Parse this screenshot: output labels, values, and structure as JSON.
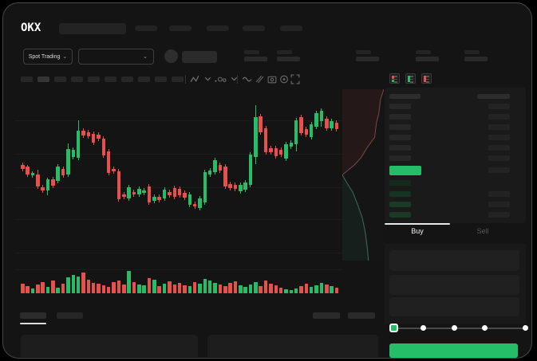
{
  "app": {
    "logo_text": "OKX"
  },
  "colors": {
    "green": "#26bd68",
    "red": "#e8504b",
    "green_dim_rows": [
      "#132b1d",
      "#163424",
      "#183a27",
      "#183a27"
    ],
    "depth_ask_line": "#7a4a46",
    "depth_bid_line": "#3e6b62",
    "depth_ask_fill": "rgba(150,55,50,0.12)",
    "depth_bid_fill": "rgba(35,110,80,0.12)",
    "placeholder": "#242424",
    "placeholder_bright": "#2c2c2c"
  },
  "header": {
    "nav_placeholder_count": 5,
    "market_selector": {
      "label": "Spot Trading",
      "chevron": "⌄"
    },
    "pair_dropdown": {
      "chevron": "⌄"
    },
    "stat_group_count": 5
  },
  "toolbar": {
    "pill_count": 10,
    "active_pill_index": 1,
    "icons": [
      "zigzag-indicator-icon",
      "chevron-down-icon",
      "dot-icon",
      "candle-style-icon",
      "chevron-down-icon",
      "wave-icon",
      "ruler-icon",
      "camera-icon",
      "gear-icon",
      "fullscreen-icon"
    ]
  },
  "chart_data": {
    "type": "candlestick_with_volume_and_depth",
    "title": "",
    "note": "Skeleton trading chart; no axis labels visible. Values in arbitrary price units 0-220 (chart height), higher = higher price.",
    "ylim": [
      0,
      220
    ],
    "grid": true,
    "candles": [
      [
        "r",
        127,
        122,
        130,
        119
      ],
      [
        "r",
        125,
        115,
        127,
        112
      ],
      [
        "g",
        117,
        114,
        119,
        111
      ],
      [
        "r",
        115,
        100,
        121,
        97
      ],
      [
        "r",
        99,
        95,
        102,
        92
      ],
      [
        "g",
        109,
        95,
        111,
        89
      ],
      [
        "r",
        109,
        101,
        112,
        98
      ],
      [
        "g",
        125,
        107,
        128,
        104
      ],
      [
        "r",
        122,
        114,
        125,
        111
      ],
      [
        "g",
        147,
        115,
        154,
        112
      ],
      [
        "g",
        146,
        137,
        149,
        134
      ],
      [
        "g",
        170,
        136,
        183,
        133
      ],
      [
        "r",
        170,
        164,
        173,
        161
      ],
      [
        "r",
        168,
        163,
        171,
        160
      ],
      [
        "r",
        166,
        155,
        169,
        152
      ],
      [
        "r",
        165,
        160,
        168,
        157
      ],
      [
        "r",
        160,
        139,
        163,
        136
      ],
      [
        "r",
        144,
        117,
        147,
        114
      ],
      [
        "r",
        122,
        119,
        125,
        116
      ],
      [
        "r",
        119,
        84,
        122,
        81
      ],
      [
        "r",
        90,
        87,
        93,
        84
      ],
      [
        "g",
        99,
        85,
        102,
        82
      ],
      [
        "r",
        93,
        90,
        96,
        87
      ],
      [
        "g",
        97,
        90,
        100,
        87
      ],
      [
        "g",
        95,
        92,
        98,
        89
      ],
      [
        "r",
        100,
        80,
        103,
        77
      ],
      [
        "g",
        87,
        82,
        90,
        79
      ],
      [
        "r",
        87,
        83,
        90,
        80
      ],
      [
        "g",
        96,
        85,
        99,
        82
      ],
      [
        "r",
        93,
        89,
        96,
        86
      ],
      [
        "r",
        98,
        87,
        101,
        84
      ],
      [
        "r",
        97,
        89,
        100,
        86
      ],
      [
        "r",
        92,
        86,
        95,
        83
      ],
      [
        "g",
        90,
        77,
        93,
        74
      ],
      [
        "r",
        78,
        75,
        81,
        72
      ],
      [
        "g",
        85,
        73,
        88,
        70
      ],
      [
        "g",
        118,
        80,
        121,
        77
      ],
      [
        "g",
        120,
        115,
        123,
        112
      ],
      [
        "g",
        133,
        118,
        136,
        115
      ],
      [
        "r",
        127,
        120,
        130,
        117
      ],
      [
        "r",
        125,
        100,
        128,
        97
      ],
      [
        "r",
        103,
        98,
        106,
        95
      ],
      [
        "r",
        102,
        97,
        105,
        94
      ],
      [
        "g",
        102,
        94,
        105,
        91
      ],
      [
        "g",
        105,
        96,
        108,
        93
      ],
      [
        "g",
        140,
        102,
        143,
        99
      ],
      [
        "g",
        187,
        137,
        202,
        128
      ],
      [
        "r",
        188,
        168,
        191,
        165
      ],
      [
        "r",
        173,
        143,
        176,
        140
      ],
      [
        "r",
        148,
        143,
        151,
        140
      ],
      [
        "r",
        148,
        138,
        151,
        135
      ],
      [
        "r",
        146,
        140,
        149,
        137
      ],
      [
        "g",
        153,
        135,
        156,
        132
      ],
      [
        "g",
        155,
        150,
        158,
        147
      ],
      [
        "g",
        183,
        153,
        186,
        144
      ],
      [
        "r",
        187,
        167,
        190,
        164
      ],
      [
        "r",
        172,
        165,
        175,
        162
      ],
      [
        "g",
        178,
        162,
        181,
        159
      ],
      [
        "g",
        192,
        175,
        195,
        172
      ],
      [
        "g",
        195,
        182,
        198,
        175
      ],
      [
        "r",
        185,
        173,
        188,
        170
      ],
      [
        "g",
        182,
        173,
        185,
        170
      ],
      [
        "r",
        180,
        172,
        183,
        169
      ]
    ],
    "volume": [
      12,
      9,
      6,
      11,
      14,
      8,
      16,
      7,
      12,
      20,
      23,
      21,
      26,
      17,
      13,
      12,
      10,
      8,
      14,
      16,
      11,
      28,
      14,
      11,
      10,
      19,
      17,
      9,
      12,
      15,
      11,
      13,
      10,
      9,
      14,
      12,
      18,
      16,
      13,
      11,
      9,
      13,
      15,
      10,
      8,
      11,
      14,
      9,
      16,
      12,
      10,
      7,
      5,
      4,
      6,
      9,
      12,
      8,
      10,
      13,
      11,
      9,
      7
    ],
    "depth": {
      "orientation": "vertical",
      "asks": [
        [
          1,
          0
        ],
        [
          0.92,
          0.06
        ],
        [
          0.88,
          0.14
        ],
        [
          0.82,
          0.2
        ],
        [
          0.78,
          0.28
        ],
        [
          0.6,
          0.34
        ],
        [
          0.45,
          0.4
        ],
        [
          0.3,
          0.44
        ],
        [
          0.1,
          0.48
        ],
        [
          0,
          0.5
        ]
      ],
      "bids": [
        [
          0,
          0.5
        ],
        [
          0.12,
          0.55
        ],
        [
          0.25,
          0.6
        ],
        [
          0.38,
          0.68
        ],
        [
          0.48,
          0.75
        ],
        [
          0.55,
          0.83
        ],
        [
          0.6,
          0.92
        ],
        [
          0.63,
          1
        ]
      ]
    }
  },
  "order_book": {
    "view_icons": [
      "book-combined-icon",
      "book-bids-icon",
      "book-asks-icon"
    ],
    "header_row": true,
    "ask_row_count": 6,
    "bid_row_count": 4,
    "last_price_row": {
      "highlight": "green"
    }
  },
  "trade_panel": {
    "tabs": [
      {
        "label": "Buy",
        "active": true
      },
      {
        "label": "Sell",
        "active": false
      }
    ],
    "field_count": 3,
    "slider": {
      "stop_count": 5,
      "selected_index": 0
    },
    "submit_button": {
      "style": "green"
    }
  },
  "bottom_area": {
    "tab_placeholder_count": 2,
    "active_tab_index": 0,
    "right_control_count": 2,
    "panel_count": 2
  }
}
